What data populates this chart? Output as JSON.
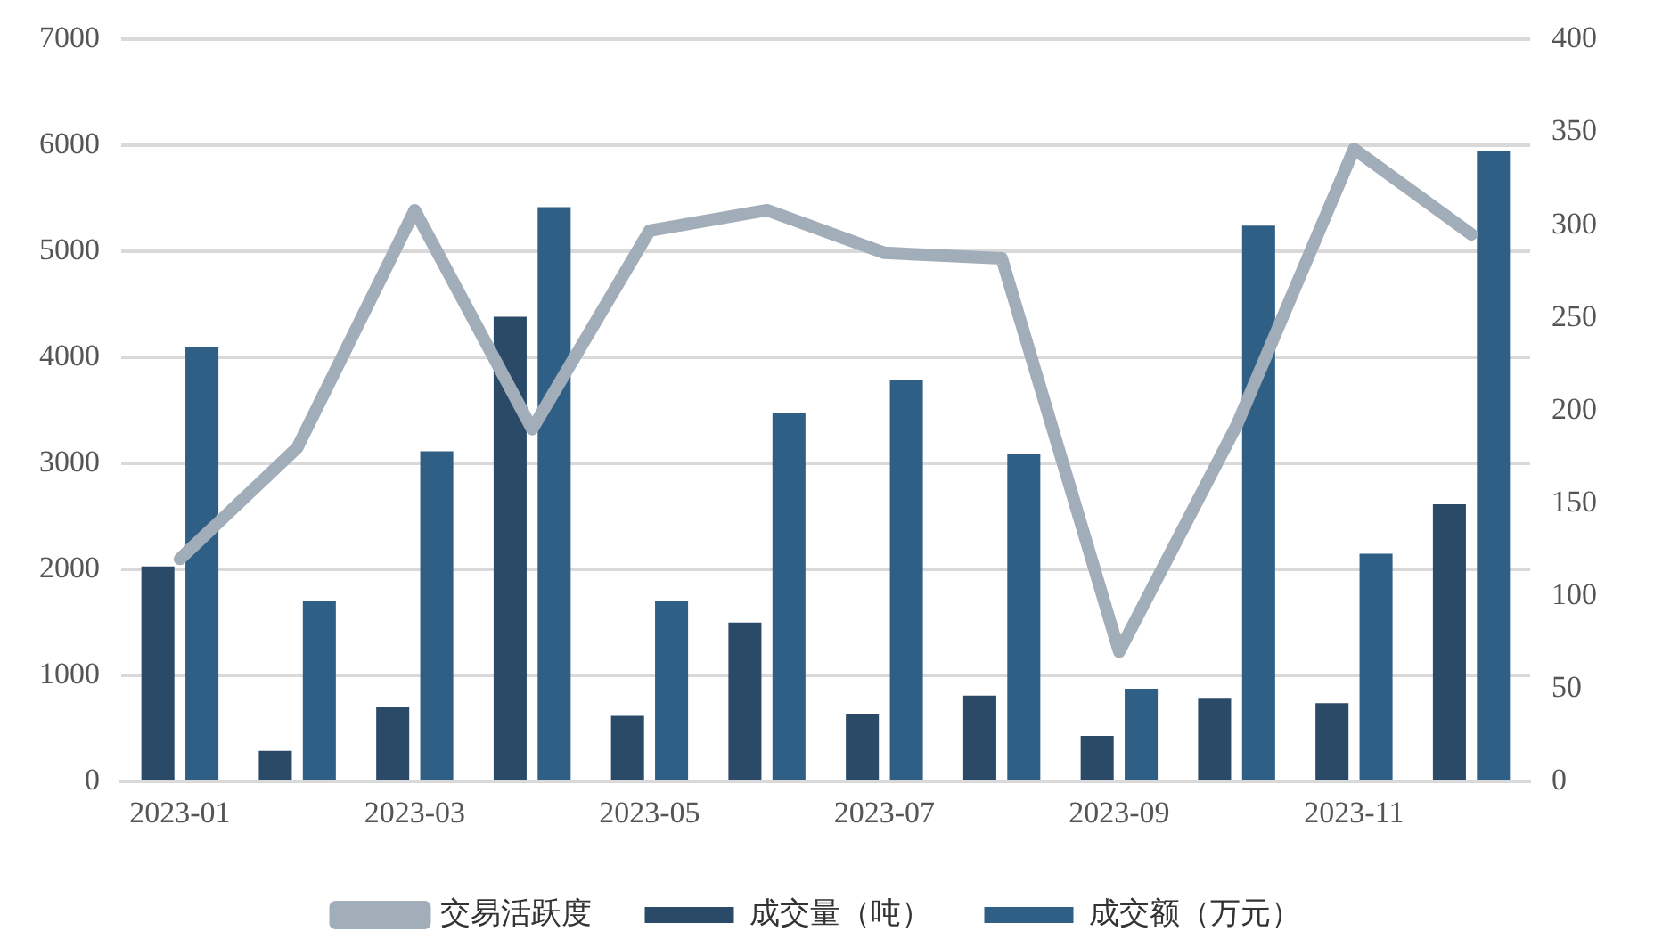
{
  "chart_data": {
    "type": "bar",
    "categories": [
      "2023-01",
      null,
      "2023-03",
      null,
      "2023-05",
      null,
      "2023-07",
      null,
      "2023-09",
      null,
      "2023-11",
      null
    ],
    "series": [
      {
        "name": "成交量（吨）",
        "color": "#2b4a68",
        "values": [
          2030,
          290,
          705,
          4385,
          620,
          1500,
          640,
          810,
          430,
          790,
          740,
          2615
        ]
      },
      {
        "name": "成交额（万元）",
        "color": "#2f5f85",
        "values": [
          4095,
          1700,
          3115,
          5420,
          1700,
          3475,
          3785,
          3095,
          875,
          5245,
          2150,
          5950
        ]
      },
      {
        "name": "交易活跃度",
        "type": "line",
        "axis": "y2",
        "color": "#a2adba",
        "values": [
          120,
          180,
          308,
          190,
          297,
          308,
          285,
          282,
          70,
          192,
          341,
          295
        ]
      }
    ],
    "ylim": [
      0,
      7000
    ],
    "yticks": [
      0,
      1000,
      2000,
      3000,
      4000,
      5000,
      6000,
      7000
    ],
    "y2lim": [
      0,
      400
    ],
    "y2ticks": [
      0,
      50,
      100,
      150,
      200,
      250,
      300,
      350,
      400
    ],
    "grid": "y",
    "legend": "bottom",
    "marker": "none"
  }
}
